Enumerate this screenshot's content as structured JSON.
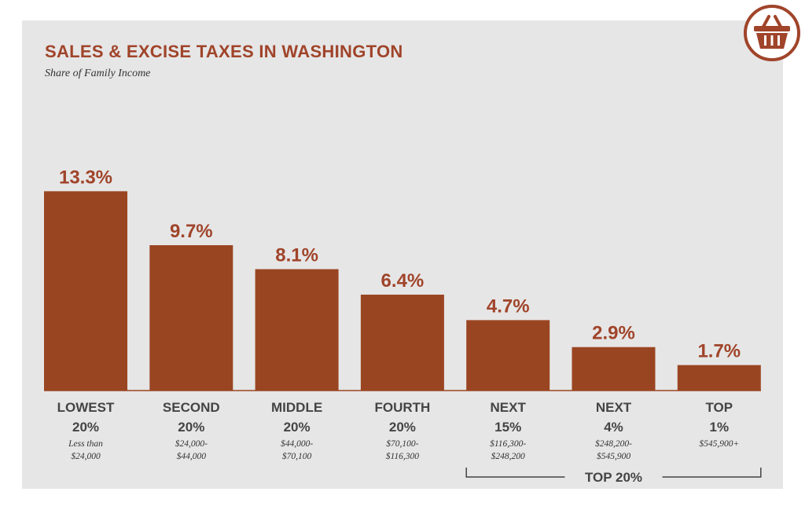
{
  "title": "SALES & EXCISE TAXES IN WASHINGTON",
  "subtitle": "Share of Family Income",
  "icon": "shopping-basket-icon",
  "colors": {
    "bar": "#9a4522",
    "accent": "#a0442a",
    "panel": "#e6e6e6"
  },
  "chart_data": {
    "type": "bar",
    "title": "SALES & EXCISE TAXES IN WASHINGTON",
    "subtitle": "Share of Family Income",
    "categories": [
      {
        "label": [
          "LOWEST",
          "20%"
        ],
        "range": [
          "Less than",
          "$24,000"
        ]
      },
      {
        "label": [
          "SECOND",
          "20%"
        ],
        "range": [
          "$24,000-",
          "$44,000"
        ]
      },
      {
        "label": [
          "MIDDLE",
          "20%"
        ],
        "range": [
          "$44,000-",
          "$70,100"
        ]
      },
      {
        "label": [
          "FOURTH",
          "20%"
        ],
        "range": [
          "$70,100-",
          "$116,300"
        ]
      },
      {
        "label": [
          "NEXT",
          "15%"
        ],
        "range": [
          "$116,300-",
          "$248,200"
        ]
      },
      {
        "label": [
          "NEXT",
          "4%"
        ],
        "range": [
          "$248,200-",
          "$545,900"
        ]
      },
      {
        "label": [
          "TOP",
          "1%"
        ],
        "range": [
          "$545,900+"
        ]
      }
    ],
    "values": [
      13.3,
      9.7,
      8.1,
      6.4,
      4.7,
      2.9,
      1.7
    ],
    "value_labels": [
      "13.3%",
      "9.7%",
      "8.1%",
      "6.4%",
      "4.7%",
      "2.9%",
      "1.7%"
    ],
    "group_annotation": {
      "label": "TOP 20%",
      "from_index": 4,
      "to_index": 6
    },
    "grid": false,
    "legend": "none"
  }
}
